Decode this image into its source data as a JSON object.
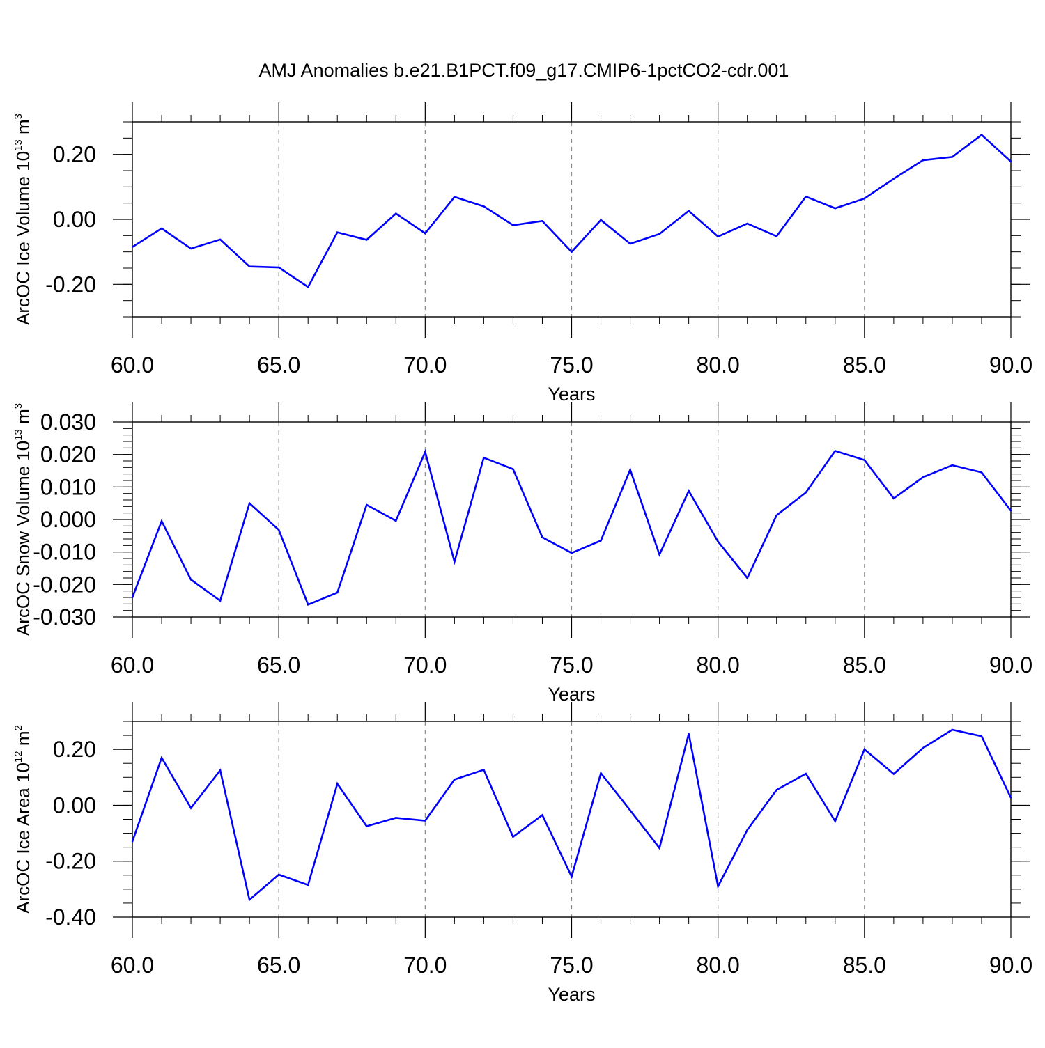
{
  "figure_title": "AMJ Anomalies b.e21.B1PCT.f09_g17.CMIP6-1pctCO2-cdr.001",
  "colors": {
    "series": "#0000ff",
    "axes": "#000000",
    "grid": "#888888"
  },
  "chart_data": [
    {
      "type": "line",
      "title": "",
      "ylabel": {
        "main": "ArcOC Ice Volume 10",
        "exponent": "13",
        "unit": " m",
        "unit_exponent": "3"
      },
      "xlabel": "Years",
      "xlim": [
        60,
        90
      ],
      "ylim": [
        -0.3,
        0.3
      ],
      "x_ticks": [
        "60.0",
        "65.0",
        "70.0",
        "75.0",
        "80.0",
        "85.0",
        "90.0"
      ],
      "y_ticks": [
        {
          "value": -0.2,
          "label": "-0.20"
        },
        {
          "value": 0.0,
          "label": "0.00"
        },
        {
          "value": 0.2,
          "label": "0.20"
        }
      ],
      "y_minor_step": 0.05,
      "grid": "vertical dashed at major x ticks",
      "x": [
        60,
        61,
        62,
        63,
        64,
        65,
        66,
        67,
        68,
        69,
        70,
        71,
        72,
        73,
        74,
        75,
        76,
        77,
        78,
        79,
        80,
        81,
        82,
        83,
        84,
        85,
        86,
        87,
        88,
        89,
        90
      ],
      "series": [
        {
          "values": [
            -0.085,
            -0.028,
            -0.09,
            -0.062,
            -0.145,
            -0.148,
            -0.208,
            -0.04,
            -0.063,
            0.018,
            -0.043,
            0.069,
            0.04,
            -0.018,
            -0.005,
            -0.1,
            -0.002,
            -0.075,
            -0.045,
            0.026,
            -0.053,
            -0.013,
            -0.052,
            0.07,
            0.034,
            0.064,
            0.125,
            0.182,
            0.192,
            0.26,
            0.178
          ]
        }
      ]
    },
    {
      "type": "line",
      "title": "",
      "ylabel": {
        "main": "ArcOC Snow Volume 10",
        "exponent": "13",
        "unit": " m",
        "unit_exponent": "3"
      },
      "xlabel": "Years",
      "xlim": [
        60,
        90
      ],
      "ylim": [
        -0.03,
        0.03
      ],
      "x_ticks": [
        "60.0",
        "65.0",
        "70.0",
        "75.0",
        "80.0",
        "85.0",
        "90.0"
      ],
      "y_ticks": [
        {
          "value": -0.03,
          "label": "-0.030"
        },
        {
          "value": -0.02,
          "label": "-0.020"
        },
        {
          "value": -0.01,
          "label": "-0.010"
        },
        {
          "value": 0.0,
          "label": "0.000"
        },
        {
          "value": 0.01,
          "label": "0.010"
        },
        {
          "value": 0.02,
          "label": "0.020"
        },
        {
          "value": 0.03,
          "label": "0.030"
        }
      ],
      "y_minor_step": 0.002,
      "grid": "vertical dashed at major x ticks",
      "x": [
        60,
        61,
        62,
        63,
        64,
        65,
        66,
        67,
        68,
        69,
        70,
        71,
        72,
        73,
        74,
        75,
        76,
        77,
        78,
        79,
        80,
        81,
        82,
        83,
        84,
        85,
        86,
        87,
        88,
        89,
        90
      ],
      "series": [
        {
          "values": [
            -0.024,
            -0.0005,
            -0.0185,
            -0.025,
            0.005,
            -0.0032,
            -0.0262,
            -0.0225,
            0.0045,
            -0.0004,
            0.0208,
            -0.013,
            0.019,
            0.0155,
            -0.0055,
            -0.0103,
            -0.0065,
            0.0153,
            -0.0108,
            0.0088,
            -0.0068,
            -0.018,
            0.0013,
            0.0083,
            0.0211,
            0.0183,
            0.0065,
            0.013,
            0.0167,
            0.0145,
            0.0027
          ]
        }
      ]
    },
    {
      "type": "line",
      "title": "",
      "ylabel": {
        "main": "ArcOC Ice Area 10",
        "exponent": "12",
        "unit": " m",
        "unit_exponent": "2"
      },
      "xlabel": "Years",
      "xlim": [
        60,
        90
      ],
      "ylim": [
        -0.4,
        0.3
      ],
      "x_ticks": [
        "60.0",
        "65.0",
        "70.0",
        "75.0",
        "80.0",
        "85.0",
        "90.0"
      ],
      "y_ticks": [
        {
          "value": -0.4,
          "label": "-0.40"
        },
        {
          "value": -0.2,
          "label": "-0.20"
        },
        {
          "value": 0.0,
          "label": "0.00"
        },
        {
          "value": 0.2,
          "label": "0.20"
        }
      ],
      "y_minor_step": 0.05,
      "grid": "vertical dashed at major x ticks",
      "x": [
        60,
        61,
        62,
        63,
        64,
        65,
        66,
        67,
        68,
        69,
        70,
        71,
        72,
        73,
        74,
        75,
        76,
        77,
        78,
        79,
        80,
        81,
        82,
        83,
        84,
        85,
        86,
        87,
        88,
        89,
        90
      ],
      "series": [
        {
          "values": [
            -0.13,
            0.17,
            -0.01,
            0.125,
            -0.338,
            -0.248,
            -0.285,
            0.077,
            -0.075,
            -0.045,
            -0.055,
            0.092,
            0.127,
            -0.113,
            -0.035,
            -0.255,
            0.115,
            -0.018,
            -0.153,
            0.256,
            -0.29,
            -0.088,
            0.055,
            0.113,
            -0.057,
            0.2,
            0.112,
            0.205,
            0.27,
            0.247,
            0.027
          ]
        }
      ]
    }
  ]
}
